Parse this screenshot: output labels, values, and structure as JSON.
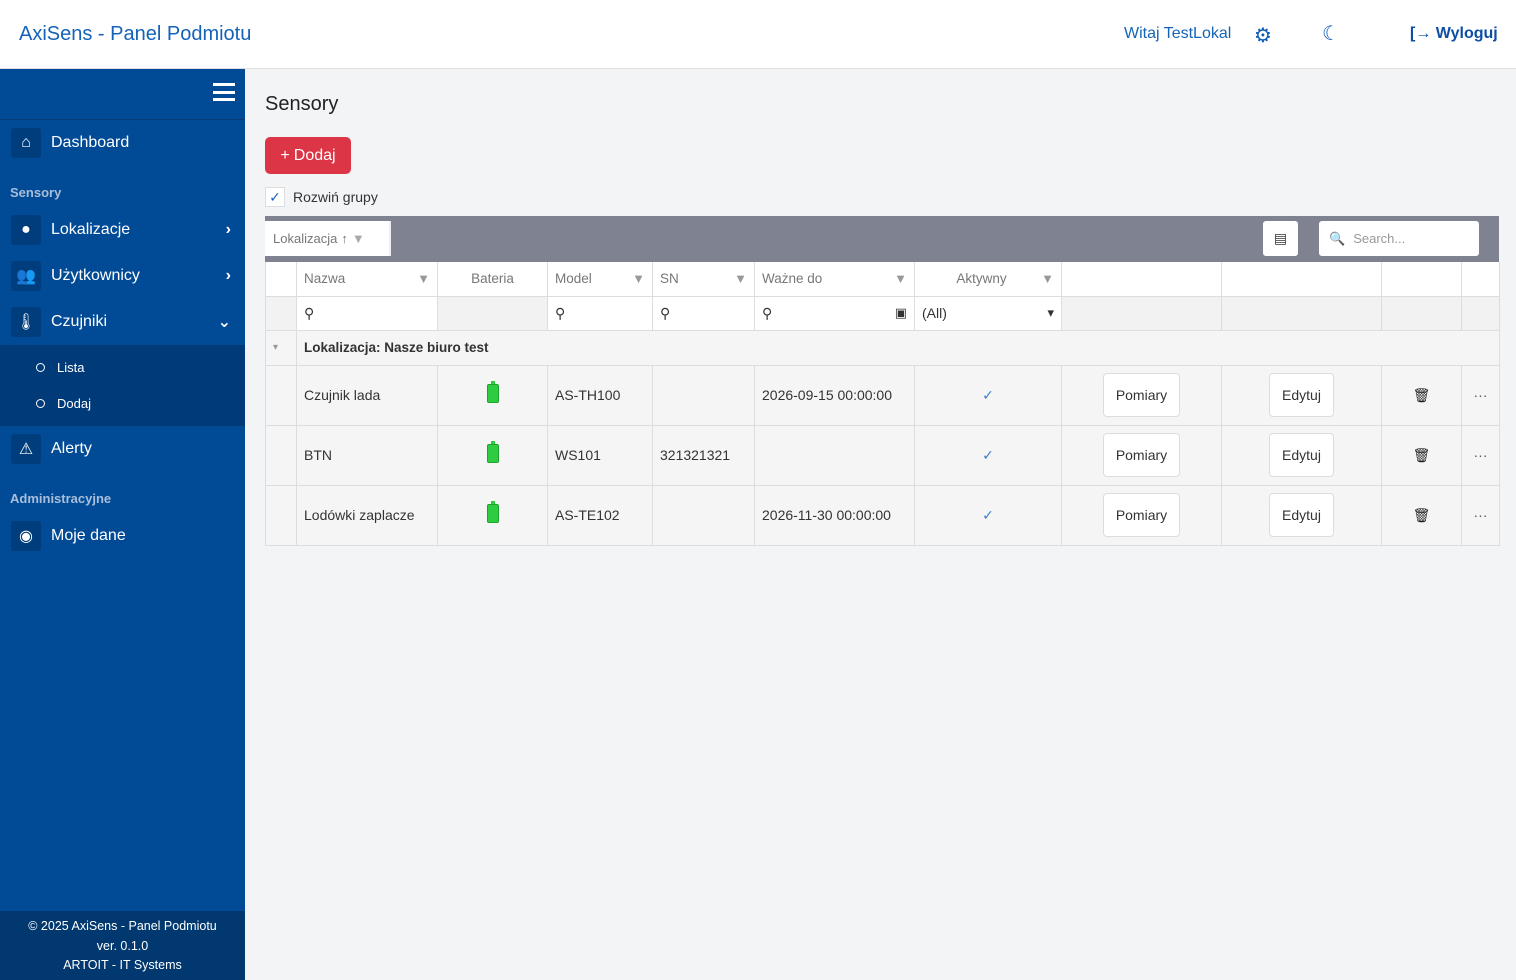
{
  "header": {
    "brand": "AxiSens - Panel Podmiotu",
    "greeting": "Witaj TestLokal",
    "logout": "Wyloguj",
    "icons": [
      "gear-icon",
      "moon-icon",
      "logout-icon"
    ]
  },
  "sidebar": {
    "dashboard": "Dashboard",
    "section1": "Sensory",
    "lokalizacje": "Lokalizacje",
    "uzytkownicy": "Użytkownicy",
    "czujniki": "Czujniki",
    "sub": [
      "Lista",
      "Dodaj"
    ],
    "alerty": "Alerty",
    "section2": "Administracyjne",
    "moje_dane": "Moje dane",
    "footer": [
      "© 2025 AxiSens - Panel Podmiotu",
      "ver. 0.1.0",
      "ARTOIT - IT Systems"
    ],
    "color": "#004a96"
  },
  "main": {
    "title": "Sensory",
    "add_label": "Dodaj",
    "expand_groups": "Rozwiń grupy",
    "expand_checked": true,
    "group_panel": "Lokalizacja",
    "search_placeholder": "Search...",
    "columns": [
      "Nazwa",
      "Bateria",
      "Model",
      "SN",
      "Ważne do",
      "Aktywny"
    ],
    "active_filter": "(All)",
    "group_label": "Lokalizacja: Nasze biuro test",
    "rows": [
      {
        "name": "Czujnik lada",
        "battery": "full",
        "model": "AS-TH100",
        "sn": "",
        "valid": "2026-09-15 00:00:00",
        "active": true,
        "measure": "Pomiary",
        "edit": "Edytuj"
      },
      {
        "name": "BTN",
        "battery": "full",
        "model": "WS101",
        "sn": "321321321",
        "valid": "",
        "active": true,
        "measure": "Pomiary",
        "edit": "Edytuj"
      },
      {
        "name": "Lodówki zaplacze",
        "battery": "full",
        "model": "AS-TE102",
        "sn": "",
        "valid": "2026-11-30 00:00:00",
        "active": true,
        "measure": "Pomiary",
        "edit": "Edytuj"
      }
    ],
    "accent": "#dc3545"
  }
}
